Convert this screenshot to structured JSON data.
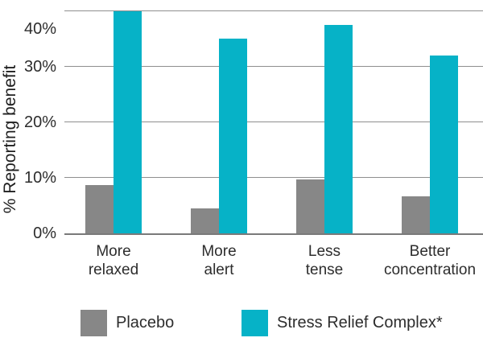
{
  "chart_data": {
    "type": "bar",
    "title": "",
    "xlabel": "",
    "ylabel": "% Reporting benefit",
    "categories": [
      "More relaxed",
      "More alert",
      "Less tense",
      "Better concentration"
    ],
    "series": [
      {
        "name": "Placebo",
        "color": "#878787",
        "values": [
          8.7,
          4.5,
          9.7,
          6.7
        ]
      },
      {
        "name": "Stress Relief Complex*",
        "color": "#06b2c7",
        "values": [
          40,
          35,
          37.5,
          32
        ]
      }
    ],
    "ylim": [
      0,
      40
    ],
    "yticks": [
      0,
      10,
      20,
      30,
      40
    ],
    "ytick_labels": [
      "0%",
      "10%",
      "20%",
      "30%",
      "40%"
    ],
    "grid": true,
    "legend_position": "bottom"
  },
  "colors": {
    "text": "#2d2d2d",
    "gridline": "#8f8f8f",
    "axis": "#7a7a7a",
    "background": "#ffffff"
  }
}
